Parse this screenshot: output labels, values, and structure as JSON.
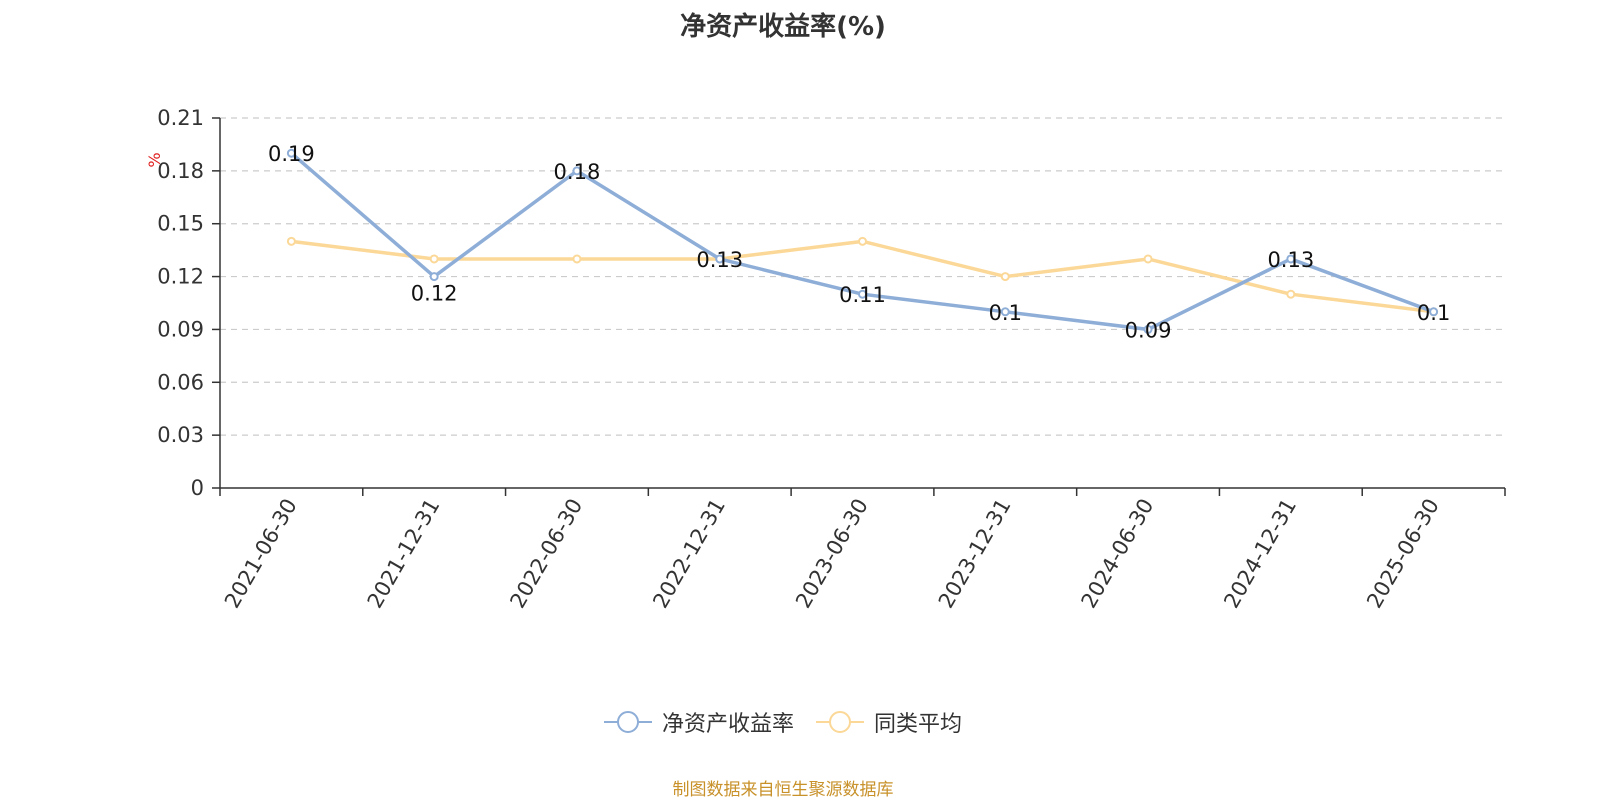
{
  "chart_data": {
    "type": "line",
    "title": "净资产收益率(%)",
    "ylabel": "%",
    "categories": [
      "2021-06-30",
      "2021-12-31",
      "2022-06-30",
      "2022-12-31",
      "2023-06-30",
      "2023-12-31",
      "2024-06-30",
      "2024-12-31",
      "2025-06-30"
    ],
    "ylim": [
      0,
      0.21
    ],
    "yticks": [
      "0",
      "0.03",
      "0.06",
      "0.09",
      "0.12",
      "0.15",
      "0.18",
      "0.21"
    ],
    "grid": true,
    "legend_position": "bottom",
    "series": [
      {
        "name": "净资产收益率",
        "color": "#8eaed8",
        "values": [
          0.19,
          0.12,
          0.18,
          0.13,
          0.11,
          0.1,
          0.09,
          0.13,
          0.1
        ],
        "labels": [
          "0.19",
          "0.12",
          "0.18",
          "0.13",
          "0.11",
          "0.1",
          "0.09",
          "0.13",
          "0.1"
        ]
      },
      {
        "name": "同类平均",
        "color": "#fbd897",
        "values": [
          0.14,
          0.13,
          0.13,
          0.13,
          0.14,
          0.12,
          0.13,
          0.11,
          0.1
        ]
      }
    ]
  },
  "source_note": "制图数据来自恒生聚源数据库"
}
